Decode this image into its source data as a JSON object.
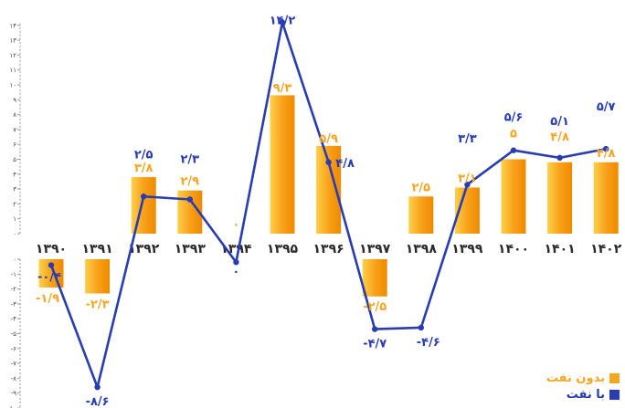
{
  "chart_data": {
    "type": "bar",
    "categories": [
      "۱۳۹۰",
      "۱۳۹۱",
      "۱۳۹۲",
      "۱۳۹۳",
      "۱۳۹۴",
      "۱۳۹۵",
      "۱۳۹۶",
      "۱۳۹۷",
      "۱۳۹۸",
      "۱۳۹۹",
      "۱۴۰۰",
      "۱۴۰۱",
      "۱۴۰۲"
    ],
    "series": [
      {
        "name": "بدون نفت",
        "type": "bar",
        "color": "#F5A623",
        "values": [
          -1.9,
          -2.3,
          3.8,
          2.9,
          0,
          9.3,
          5.9,
          -2.5,
          2.5,
          3.1,
          5,
          4.8,
          4.8
        ],
        "labels": [
          "-۱/۹",
          "-۲/۳",
          "۳/۸",
          "۲/۹",
          "۰",
          "۹/۳",
          "۵/۹",
          "-۲/۵",
          "۲/۵",
          "۳/۱",
          "۵",
          "۴/۸",
          "۴/۸"
        ]
      },
      {
        "name": "با نفت",
        "type": "line",
        "color": "#283CB4",
        "values": [
          -0.4,
          -8.6,
          2.5,
          2.3,
          -0.2,
          14.2,
          4.8,
          -4.7,
          -4.6,
          3.3,
          5.6,
          5.1,
          5.7
        ],
        "labels": [
          "-۰/۴",
          "-۸/۶",
          "۲/۵",
          "۲/۳",
          "۰",
          "۱۴/۲",
          "۴/۸",
          "-۴/۷",
          "-۴/۶",
          "۳/۳",
          "۵/۶",
          "۵/۱",
          "۵/۷"
        ]
      }
    ],
    "y_ticks_top": [
      "۰",
      "۱",
      "۲",
      "۳",
      "۴",
      "۵",
      "۶",
      "۷",
      "۸",
      "۹",
      "۱۰",
      "۱۱",
      "۱۲",
      "۱۳",
      "۱۴"
    ],
    "y_ticks_bottom": [
      "۰",
      "-۱",
      "-۲",
      "-۳",
      "-۴",
      "-۵",
      "-۶",
      "-۷",
      "-۸",
      "-۹",
      "-۱۰"
    ],
    "ylim": [
      -10,
      14
    ],
    "legend_position": "bottom-right",
    "grid": false
  }
}
